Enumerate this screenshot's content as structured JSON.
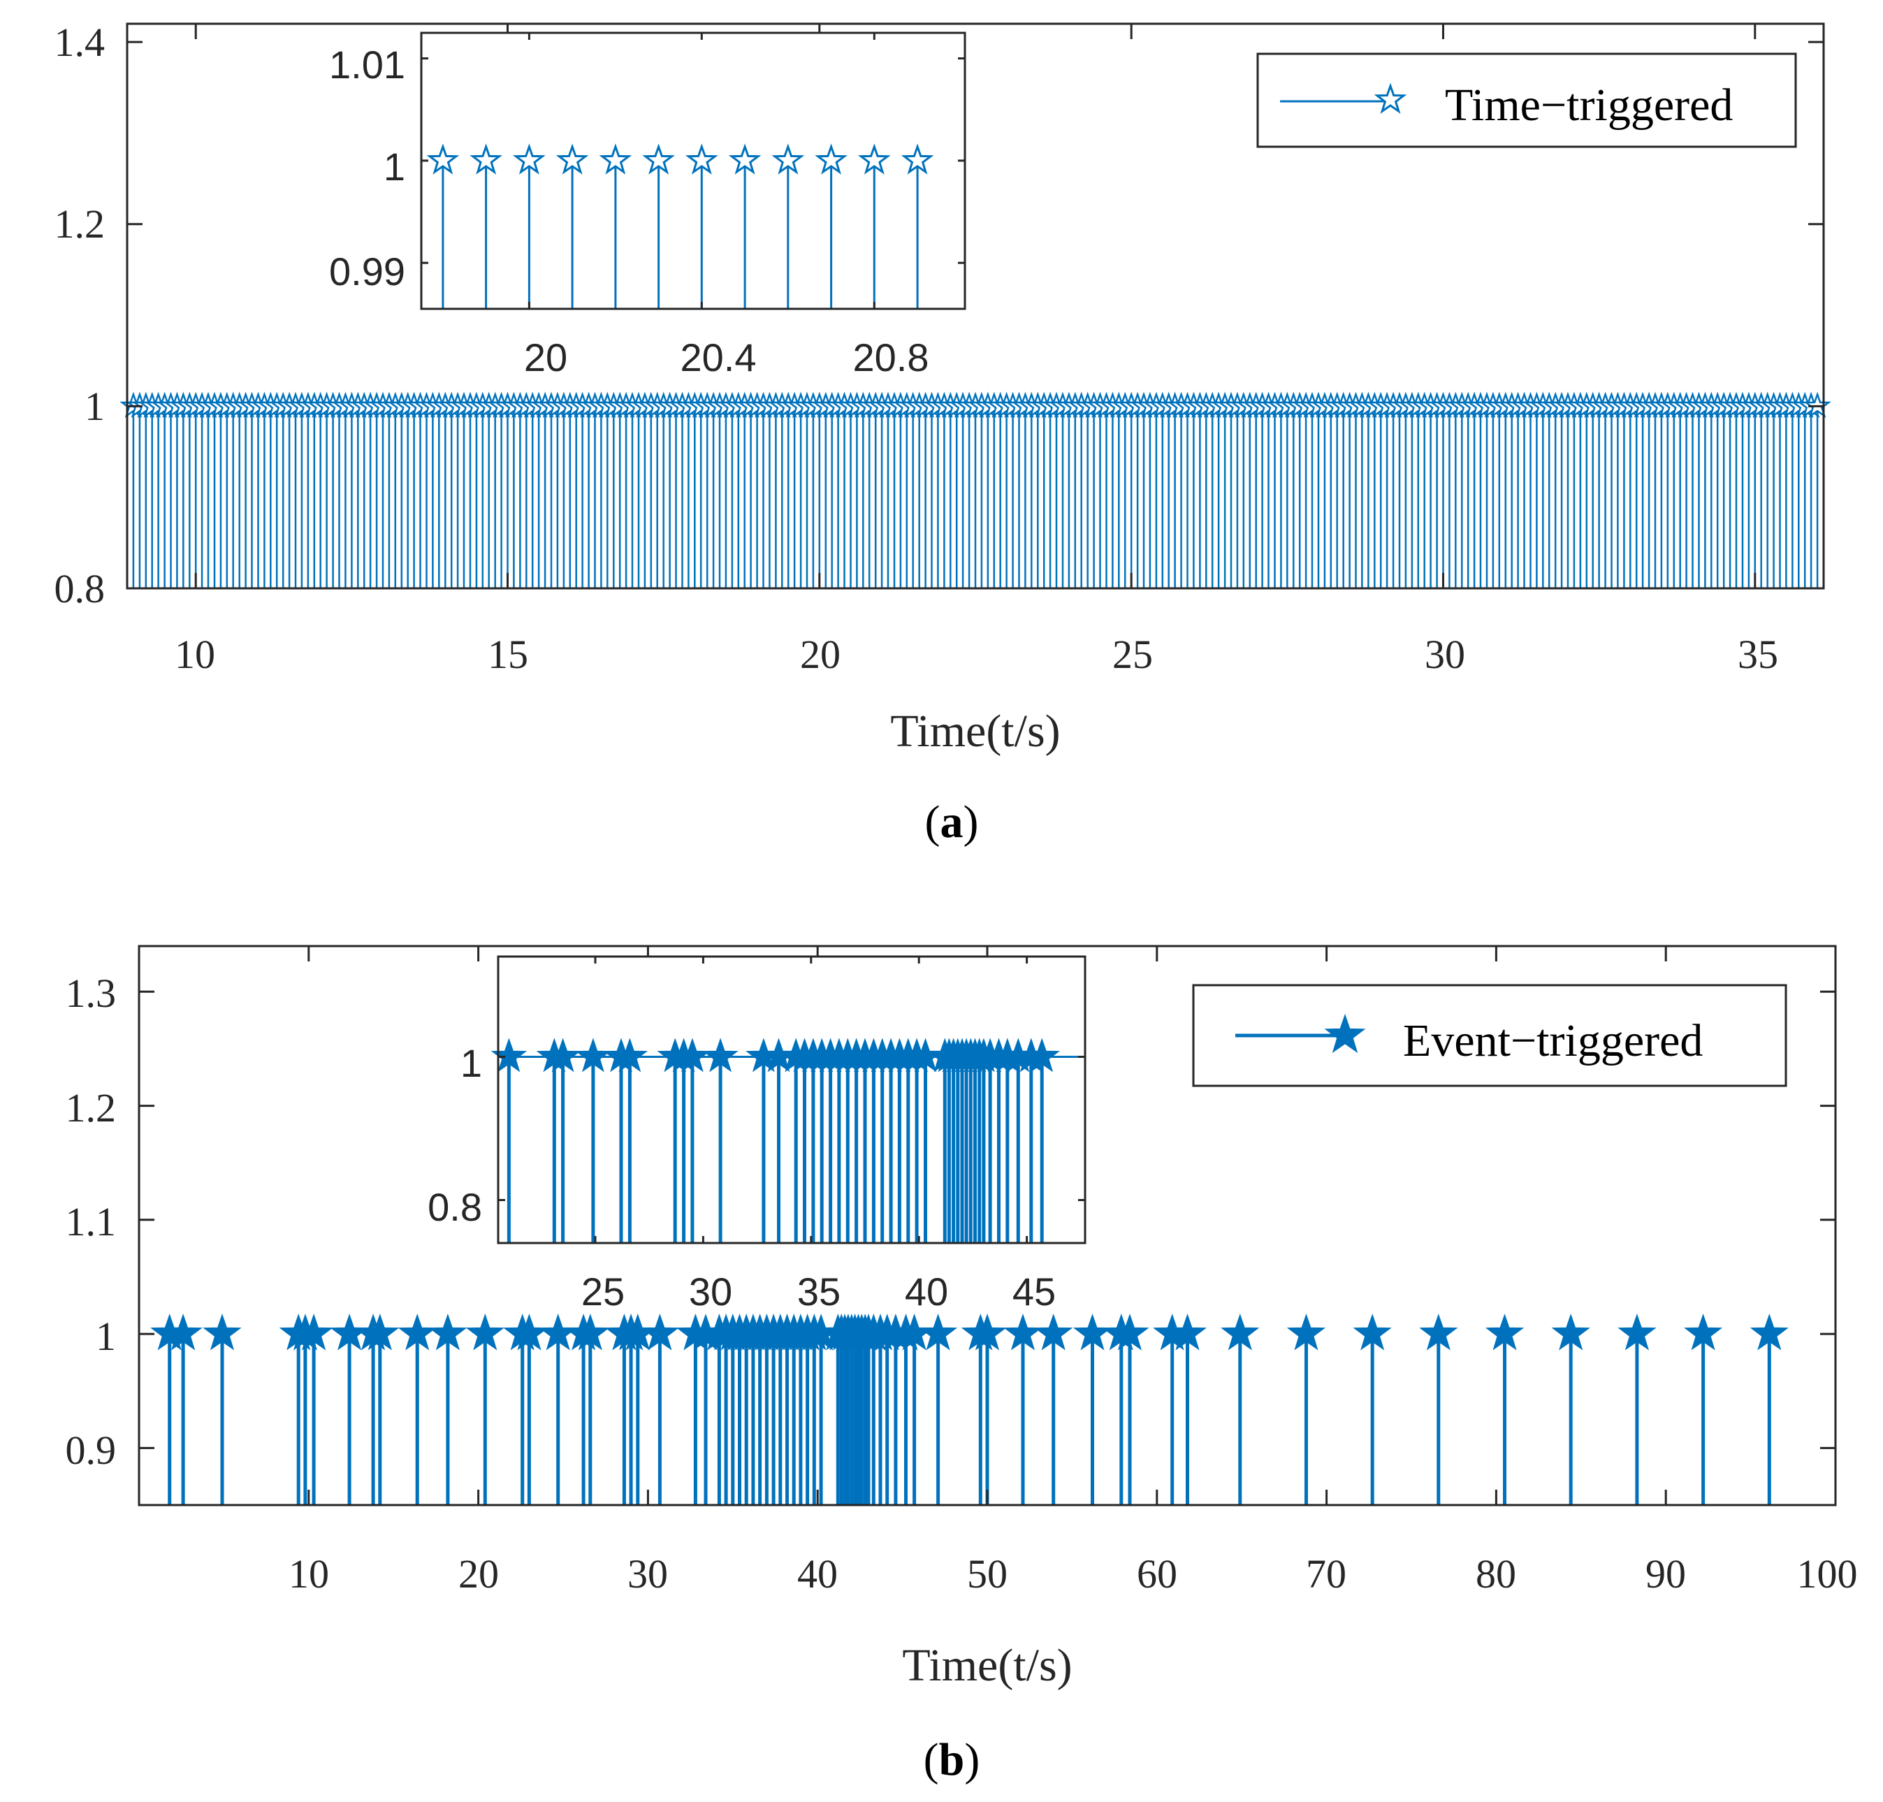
{
  "chart_data": [
    {
      "id": "a",
      "type": "stem",
      "caption": "(a)",
      "caption_letter": "a",
      "xlabel": "Time(t/s)",
      "ylabel": "",
      "xlim": [
        8.9,
        36.1
      ],
      "ylim": [
        0.8,
        1.42
      ],
      "xticks": [
        10,
        15,
        20,
        25,
        30,
        35
      ],
      "yticks": [
        0.8,
        1,
        1.2,
        1.4
      ],
      "ytick_labels": [
        "0.8",
        "1",
        "1.2",
        "1.4"
      ],
      "legend": {
        "label": "Time−triggered",
        "marker": "open-star",
        "position": "top-right"
      },
      "series": [
        {
          "name": "Time−triggered",
          "color": "#0072BD",
          "marker": "open-star",
          "value": 1,
          "sampling": {
            "start": 9.0,
            "end": 36.0,
            "step": 0.1
          }
        }
      ],
      "inset": {
        "xlim": [
          19.75,
          21.01
        ],
        "ylim": [
          0.9855,
          1.0125
        ],
        "xticks": [
          20,
          20.4,
          20.8
        ],
        "xtick_labels": [
          "20",
          "20.4",
          "20.8"
        ],
        "yticks": [
          0.99,
          1,
          1.01
        ],
        "ytick_labels": [
          "0.99",
          "1",
          "1.01"
        ],
        "x": [
          19.8,
          19.9,
          20.0,
          20.1,
          20.2,
          20.3,
          20.4,
          20.5,
          20.6,
          20.7,
          20.8,
          20.9
        ],
        "value": 1
      }
    },
    {
      "id": "b",
      "type": "stem",
      "caption": "(b)",
      "caption_letter": "b",
      "xlabel": "Time(t/s)",
      "ylabel": "",
      "xlim": [
        0,
        100
      ],
      "ylim": [
        0.85,
        1.34
      ],
      "xticks": [
        10,
        20,
        30,
        40,
        50,
        60,
        70,
        80,
        90,
        100
      ],
      "yticks": [
        0.9,
        1,
        1.1,
        1.2,
        1.3
      ],
      "ytick_labels": [
        "0.9",
        "1",
        "1.1",
        "1.2",
        "1.3"
      ],
      "legend": {
        "label": "Event−triggered",
        "marker": "filled-star",
        "position": "top-right"
      },
      "series": [
        {
          "name": "Event−triggered",
          "color": "#0072BD",
          "marker": "filled-star",
          "value": 1,
          "x": [
            1.8,
            2.6,
            4.9,
            9.4,
            9.8,
            10.3,
            12.4,
            13.8,
            14.2,
            16.4,
            18.2,
            20.4,
            22.6,
            23.0,
            24.7,
            26.2,
            26.6,
            28.6,
            29.0,
            29.4,
            30.7,
            32.8,
            33.4,
            34.2,
            34.6,
            35.0,
            35.4,
            35.8,
            36.2,
            36.6,
            37.0,
            37.4,
            37.8,
            38.2,
            38.6,
            39.0,
            39.4,
            39.8,
            40.2,
            41.2,
            41.4,
            41.6,
            41.8,
            42.0,
            42.2,
            42.4,
            42.6,
            42.8,
            43.0,
            43.3,
            43.7,
            44.1,
            44.6,
            45.2,
            45.7,
            47.1,
            49.6,
            50.0,
            52.1,
            53.9,
            56.2,
            57.9,
            58.4,
            60.9,
            61.8,
            64.9,
            68.8,
            72.7,
            76.6,
            80.5,
            84.4,
            88.3,
            92.2,
            96.1
          ]
        }
      ],
      "inset": {
        "xlim": [
          20.5,
          47.7
        ],
        "ylim": [
          0.74,
          1.14
        ],
        "xticks": [
          25,
          30,
          35,
          40,
          45
        ],
        "xtick_labels": [
          "25",
          "30",
          "35",
          "40",
          "45"
        ],
        "yticks": [
          0.8,
          1
        ],
        "ytick_labels": [
          "0.8",
          "1"
        ],
        "x": [
          21.0,
          23.1,
          23.5,
          24.9,
          26.2,
          26.6,
          28.7,
          29.1,
          29.5,
          30.8,
          32.8,
          33.5,
          34.3,
          34.7,
          35.1,
          35.5,
          35.9,
          36.3,
          36.7,
          37.1,
          37.5,
          37.9,
          38.3,
          38.7,
          39.1,
          39.5,
          39.9,
          40.3,
          41.2,
          41.4,
          41.6,
          41.8,
          42.0,
          42.2,
          42.4,
          42.6,
          42.8,
          43.0,
          43.3,
          43.7,
          44.1,
          44.6,
          45.2,
          45.7
        ],
        "value": 1
      }
    }
  ]
}
